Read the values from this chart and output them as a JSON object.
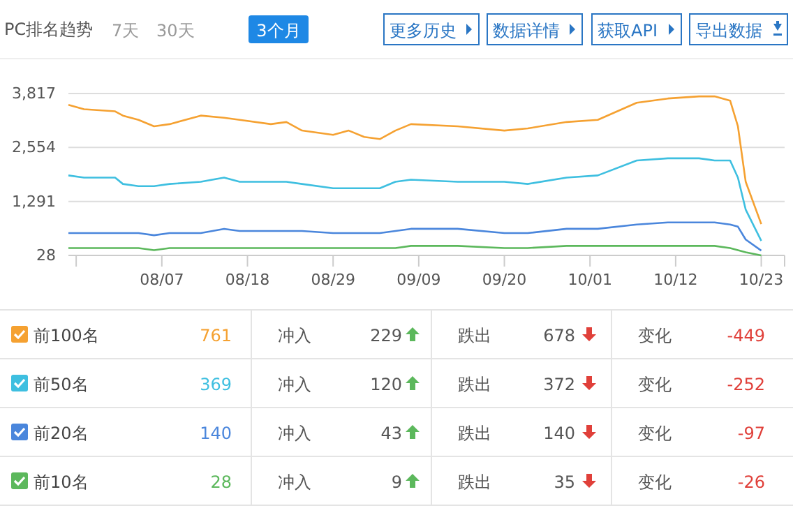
{
  "chart_data": {
    "type": "line",
    "title": "PC排名趋势",
    "x": [
      "--07-26",
      "--07-28",
      "--08-01",
      "--08-02",
      "--08-04",
      "--08-06",
      "--08-08",
      "--08-12",
      "--08-15",
      "--08-17",
      "--08-21",
      "--08-23",
      "--08-25",
      "--08-29",
      "--08-31",
      "--09-02",
      "--09-04",
      "--09-06",
      "--09-08",
      "--09-14",
      "--09-20",
      "--09-23",
      "--09-28",
      "--10-02",
      "--10-07",
      "--10-11",
      "--10-15",
      "--10-17",
      "--10-19",
      "--10-20",
      "--10-21",
      "--10-23"
    ],
    "series": [
      {
        "name": "前100名",
        "color": "#f5a131",
        "values": [
          3550,
          3450,
          3400,
          3300,
          3200,
          3050,
          3100,
          3300,
          3250,
          3200,
          3100,
          3150,
          2950,
          2850,
          2950,
          2800,
          2750,
          2950,
          3100,
          3050,
          2950,
          3000,
          3150,
          3200,
          3600,
          3700,
          3750,
          3750,
          3650,
          3050,
          1750,
          761
        ]
      },
      {
        "name": "前50名",
        "color": "#3ebfe0",
        "values": [
          1900,
          1850,
          1850,
          1700,
          1650,
          1650,
          1700,
          1750,
          1850,
          1750,
          1750,
          1750,
          1700,
          1600,
          1600,
          1600,
          1600,
          1750,
          1800,
          1750,
          1750,
          1700,
          1850,
          1900,
          2250,
          2300,
          2300,
          2250,
          2250,
          1850,
          1100,
          369
        ]
      },
      {
        "name": "前20名",
        "color": "#4a86dc",
        "values": [
          550,
          550,
          550,
          550,
          550,
          500,
          550,
          550,
          650,
          600,
          600,
          600,
          600,
          550,
          550,
          550,
          550,
          600,
          650,
          650,
          550,
          550,
          650,
          650,
          750,
          800,
          800,
          800,
          750,
          700,
          400,
          140
        ]
      },
      {
        "name": "前10名",
        "color": "#5cb85c",
        "values": [
          200,
          200,
          200,
          200,
          200,
          150,
          200,
          200,
          200,
          200,
          200,
          200,
          200,
          200,
          200,
          200,
          200,
          200,
          250,
          250,
          200,
          200,
          250,
          250,
          250,
          250,
          250,
          250,
          200,
          150,
          100,
          28
        ]
      }
    ],
    "xlim": [
      "--07-26",
      "--10-26"
    ],
    "xticks": [
      {
        "value": "--07-27",
        "label": null
      },
      {
        "value": "--08-07",
        "label": "08/07"
      },
      {
        "value": "--08-18",
        "label": "08/18"
      },
      {
        "value": "--08-29",
        "label": "08/29"
      },
      {
        "value": "--09-09",
        "label": "09/09"
      },
      {
        "value": "--09-20",
        "label": "09/20"
      },
      {
        "value": "--10-01",
        "label": "10/01"
      },
      {
        "value": "--10-12",
        "label": "10/12"
      },
      {
        "value": "--10-23",
        "label": "10/23"
      },
      {
        "value": "--10-26",
        "label": null
      }
    ],
    "ylim": [
      28,
      3817
    ],
    "yticks": [
      28,
      {
        "value": 1291,
        "label": "1,291"
      },
      {
        "value": 2554,
        "label": "2,554"
      },
      {
        "value": 3817,
        "label": "3,817"
      }
    ],
    "grid": "y",
    "legend": "bottom",
    "marker": "none",
    "line_style": "solid",
    "annotations": [
      "7天",
      "30天",
      "3个月",
      "更多历史",
      "数据详情",
      "获取API",
      "导出数据",
      "761",
      "冲入",
      "229",
      "跌出",
      "678",
      "变化",
      "-449",
      "369",
      "冲入",
      "120",
      "跌出",
      "372",
      "变化",
      "-252",
      "140",
      "冲入",
      "43",
      "跌出",
      "140",
      "变化",
      "-97",
      "28",
      "冲入",
      "9",
      "跌出",
      "35",
      "变化",
      "-26"
    ]
  }
}
